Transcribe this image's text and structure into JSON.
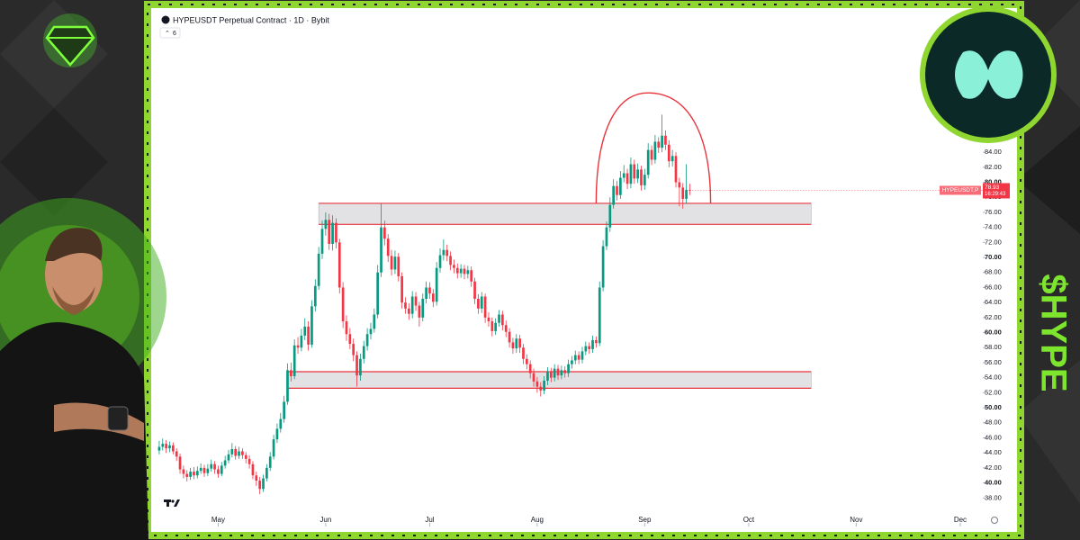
{
  "header": {
    "indicators": "6"
  },
  "overlay_text": "$HYPE",
  "chart_data": {
    "type": "candlestick",
    "title": "HYPEUSDT Perpetual Contract · 1D · Bybit",
    "xlim": [
      -0.5,
      237.5
    ],
    "xticks": [
      {
        "value": 17,
        "label": "May"
      },
      {
        "value": 48,
        "label": "Jun"
      },
      {
        "value": 78,
        "label": "Jul"
      },
      {
        "value": 109,
        "label": "Aug"
      },
      {
        "value": 140,
        "label": "Sep"
      },
      {
        "value": 170,
        "label": "Oct"
      },
      {
        "value": 201,
        "label": "Nov"
      },
      {
        "value": 231,
        "label": "Dec"
      }
    ],
    "ylim": [
      34.2,
      102.1
    ],
    "yticks": [
      {
        "value": 38,
        "label": "38.00"
      },
      {
        "value": 40,
        "label": "40.00"
      },
      {
        "value": 42,
        "label": "42.00"
      },
      {
        "value": 44,
        "label": "44.00"
      },
      {
        "value": 46,
        "label": "46.00"
      },
      {
        "value": 48,
        "label": "48.00"
      },
      {
        "value": 50,
        "label": "50.00"
      },
      {
        "value": 52,
        "label": "52.00"
      },
      {
        "value": 54,
        "label": "54.00"
      },
      {
        "value": 56,
        "label": "56.00"
      },
      {
        "value": 58,
        "label": "58.00"
      },
      {
        "value": 60,
        "label": "60.00"
      },
      {
        "value": 62,
        "label": "62.00"
      },
      {
        "value": 64,
        "label": "64.00"
      },
      {
        "value": 66,
        "label": "66.00"
      },
      {
        "value": 68,
        "label": "68.00"
      },
      {
        "value": 70,
        "label": "70.00"
      },
      {
        "value": 72,
        "label": "72.00"
      },
      {
        "value": 74,
        "label": "74.00"
      },
      {
        "value": 76,
        "label": "76.00"
      },
      {
        "value": 78,
        "label": "78.00"
      },
      {
        "value": 80,
        "label": "80.00"
      },
      {
        "value": 82,
        "label": "82.00"
      },
      {
        "value": 84,
        "label": "84.00"
      }
    ],
    "series": [
      {
        "name": "HYPEUSDT.P",
        "up_color": "#089981",
        "down_color": "#f23645",
        "open": [
          44.3,
          44.8,
          45.2,
          44.6,
          45.0,
          44.2,
          43.5,
          41.8,
          41.2,
          40.8,
          41.5,
          41.0,
          41.6,
          42.0,
          41.3,
          41.9,
          42.5,
          41.8,
          41.2,
          42.3,
          43.0,
          43.8,
          44.5,
          43.6,
          44.2,
          43.7,
          43.2,
          42.5,
          41.0,
          40.3,
          39.2,
          40.6,
          42.0,
          43.5,
          45.8,
          47.2,
          48.5,
          50.8,
          55.0,
          54.2,
          58.3,
          58.0,
          59.6,
          60.8,
          58.4,
          63.5,
          66.2,
          70.5,
          73.8,
          75.0,
          71.8,
          74.6,
          72.0,
          66.0,
          61.5,
          59.8,
          58.5,
          57.0,
          54.3,
          56.5,
          58.2,
          59.8,
          60.5,
          62.4,
          68.0,
          74.0,
          72.5,
          70.2,
          68.4,
          70.1,
          67.5,
          64.0,
          63.2,
          62.5,
          64.8,
          63.6,
          62.0,
          64.5,
          66.0,
          65.2,
          64.1,
          68.6,
          70.3,
          71.0,
          70.2,
          69.0,
          68.6,
          67.9,
          68.5,
          67.8,
          68.3,
          66.8,
          64.5,
          63.2,
          64.8,
          62.0,
          61.5,
          60.2,
          61.3,
          62.4,
          61.0,
          60.1,
          58.7,
          57.9,
          59.2,
          58.0,
          56.5,
          55.8,
          54.6,
          53.5,
          52.8,
          52.3,
          53.6,
          54.8,
          54.0,
          55.2,
          54.3,
          55.0,
          54.6,
          55.8,
          56.3,
          57.0,
          56.4,
          57.5,
          58.2,
          57.8,
          59.0,
          58.6,
          66.0,
          71.5,
          74.0,
          77.0,
          79.5,
          78.3,
          80.6,
          81.2,
          79.8,
          82.4,
          80.5,
          81.7,
          79.6,
          81.0,
          84.3,
          83.0,
          85.4,
          84.6,
          86.2,
          85.0,
          82.8,
          83.5,
          80.0,
          79.3,
          77.8,
          79.0
        ],
        "high": [
          45.6,
          45.9,
          45.7,
          45.5,
          45.4,
          44.6,
          43.9,
          42.3,
          41.7,
          42.0,
          42.1,
          42.2,
          42.6,
          42.4,
          42.5,
          43.1,
          42.9,
          42.3,
          42.8,
          43.6,
          44.4,
          45.3,
          44.9,
          44.8,
          44.6,
          44.1,
          43.7,
          42.9,
          41.5,
          40.8,
          41.1,
          42.5,
          44.1,
          46.4,
          47.9,
          49.3,
          51.6,
          55.9,
          56.0,
          59.1,
          59.4,
          60.5,
          61.9,
          61.5,
          64.3,
          67.1,
          71.4,
          74.9,
          76.0,
          75.8,
          75.6,
          75.2,
          72.5,
          66.7,
          62.3,
          60.6,
          59.2,
          57.5,
          57.2,
          58.9,
          60.6,
          61.3,
          63.2,
          69.0,
          77.2,
          74.9,
          73.1,
          71.0,
          70.9,
          70.6,
          68.0,
          64.7,
          63.9,
          65.5,
          65.4,
          64.1,
          65.2,
          66.8,
          66.7,
          65.8,
          69.4,
          71.2,
          72.4,
          71.7,
          70.8,
          69.7,
          69.2,
          69.1,
          69.0,
          68.9,
          68.8,
          67.3,
          65.1,
          65.4,
          65.2,
          62.7,
          62.0,
          61.9,
          63.0,
          62.9,
          61.6,
          60.6,
          59.3,
          59.8,
          59.7,
          58.5,
          57.1,
          56.3,
          55.2,
          54.1,
          53.4,
          54.2,
          55.4,
          55.3,
          55.8,
          55.7,
          55.6,
          55.5,
          56.4,
          56.9,
          57.6,
          57.5,
          58.1,
          58.8,
          58.7,
          59.6,
          59.5,
          66.8,
          72.3,
          74.8,
          78.0,
          80.4,
          80.2,
          81.5,
          82.3,
          81.8,
          83.3,
          83.0,
          82.5,
          82.2,
          81.8,
          85.2,
          84.9,
          86.3,
          86.0,
          89.0,
          86.9,
          85.6,
          84.3,
          84.0,
          80.6,
          79.9,
          82.4,
          79.8
        ],
        "low": [
          43.8,
          44.3,
          44.0,
          44.1,
          43.8,
          42.9,
          41.2,
          40.6,
          40.2,
          40.4,
          40.5,
          40.6,
          41.2,
          40.8,
          40.9,
          41.5,
          41.2,
          40.7,
          40.9,
          41.9,
          42.6,
          43.4,
          43.1,
          43.2,
          43.2,
          42.6,
          41.9,
          40.5,
          39.6,
          38.5,
          38.8,
          40.2,
          41.6,
          43.1,
          45.3,
          46.7,
          48.0,
          50.4,
          53.5,
          53.8,
          57.2,
          57.5,
          59.0,
          57.6,
          58.0,
          62.8,
          65.7,
          69.8,
          72.9,
          71.0,
          70.9,
          71.2,
          65.2,
          60.6,
          58.9,
          57.8,
          56.2,
          52.8,
          53.6,
          55.9,
          57.6,
          59.1,
          60.0,
          61.9,
          67.4,
          71.6,
          69.4,
          67.6,
          67.8,
          66.8,
          63.2,
          62.5,
          61.7,
          61.9,
          62.9,
          60.8,
          61.5,
          63.9,
          64.5,
          63.4,
          63.6,
          68.0,
          69.6,
          69.5,
          68.3,
          67.9,
          67.2,
          67.3,
          67.1,
          67.2,
          66.1,
          63.8,
          62.5,
          62.6,
          61.3,
          60.8,
          59.5,
          59.7,
          60.8,
          60.3,
          59.4,
          58.0,
          57.2,
          57.3,
          57.3,
          55.8,
          55.1,
          53.9,
          52.8,
          52.0,
          51.5,
          51.8,
          53.0,
          53.4,
          53.5,
          53.7,
          53.8,
          54.0,
          54.1,
          55.2,
          55.8,
          55.8,
          55.9,
          57.0,
          57.2,
          57.3,
          58.0,
          58.2,
          65.5,
          71.0,
          73.4,
          76.5,
          77.6,
          77.8,
          80.0,
          79.1,
          79.2,
          79.8,
          79.9,
          78.9,
          79.0,
          80.5,
          82.3,
          82.5,
          83.9,
          84.0,
          84.3,
          82.0,
          82.1,
          79.3,
          76.8,
          76.5,
          77.2,
          78.3
        ],
        "close": [
          44.8,
          45.2,
          44.6,
          45.0,
          44.2,
          43.5,
          41.8,
          41.2,
          40.8,
          41.5,
          41.0,
          41.6,
          42.0,
          41.3,
          41.9,
          42.5,
          41.8,
          41.2,
          42.3,
          43.0,
          43.8,
          44.5,
          43.6,
          44.2,
          43.7,
          43.2,
          42.5,
          41.0,
          40.3,
          39.2,
          40.6,
          42.0,
          43.5,
          45.8,
          47.2,
          48.5,
          50.8,
          55.0,
          54.2,
          58.3,
          58.0,
          59.6,
          60.8,
          58.4,
          63.5,
          66.2,
          70.5,
          73.8,
          75.0,
          71.8,
          74.6,
          72.0,
          66.0,
          61.5,
          59.8,
          58.5,
          57.0,
          54.3,
          56.5,
          58.2,
          59.8,
          60.5,
          62.4,
          68.0,
          74.0,
          72.5,
          70.2,
          68.4,
          70.1,
          67.5,
          64.0,
          63.2,
          62.5,
          64.8,
          63.6,
          62.0,
          64.5,
          66.0,
          65.2,
          64.1,
          68.6,
          70.3,
          71.0,
          70.2,
          69.0,
          68.6,
          67.9,
          68.5,
          67.8,
          68.3,
          66.8,
          64.5,
          63.2,
          64.8,
          62.0,
          61.5,
          60.2,
          61.3,
          62.4,
          61.0,
          60.1,
          58.7,
          57.9,
          59.2,
          58.0,
          56.5,
          55.8,
          54.6,
          53.5,
          52.8,
          52.3,
          53.6,
          54.8,
          54.0,
          55.2,
          54.3,
          55.0,
          54.6,
          55.8,
          56.3,
          57.0,
          56.4,
          57.5,
          58.2,
          57.8,
          59.0,
          58.6,
          66.0,
          71.5,
          74.0,
          77.0,
          79.5,
          78.3,
          80.6,
          81.2,
          79.8,
          82.4,
          80.5,
          81.7,
          79.6,
          81.0,
          84.3,
          83.0,
          85.4,
          84.6,
          86.2,
          85.0,
          82.8,
          83.5,
          80.0,
          79.3,
          77.8,
          79.0,
          78.9
        ]
      }
    ],
    "last_price": 78.93,
    "countdown": "16:29:43",
    "annotation_color": "#e8343c",
    "zones": [
      {
        "top": 77.2,
        "bottom": 74.4,
        "start": 46,
        "end": 188
      },
      {
        "top": 54.8,
        "bottom": 52.6,
        "start": 37,
        "end": 188
      }
    ],
    "arc": {
      "start": 126,
      "peak": 141,
      "end": 159,
      "base": 77.2,
      "top": 91.9
    }
  }
}
